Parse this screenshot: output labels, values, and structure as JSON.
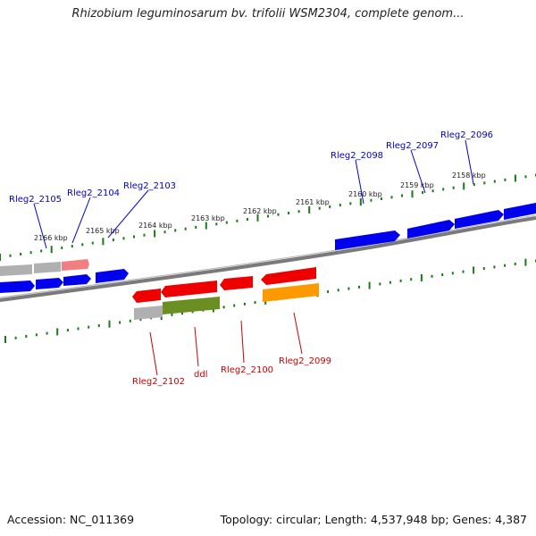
{
  "title": "Rhizobium leguminosarum bv. trifolii WSM2304, complete genom...",
  "footer": {
    "accession": "Accession: NC_011369",
    "summary": "Topology: circular; Length: 4,537,948 bp; Genes: 4,387"
  },
  "colors": {
    "forward_label": "#0000cc",
    "reverse_label": "#cc0000",
    "tick": "#1a7a1a",
    "backbone": "#808080",
    "gene_blue": "#0000ee",
    "gene_red": "#ee0000",
    "gene_grey": "#b0b0b0",
    "gene_pink": "#f08080",
    "gene_green": "#6b8e23",
    "gene_orange": "#ff9900"
  },
  "kbp_ticks": [
    "2166 kbp",
    "2165 kbp",
    "2164 kbp",
    "2163 kbp",
    "2162 kbp",
    "2161 kbp",
    "2160 kbp",
    "2159 kbp",
    "2158 kbp"
  ],
  "forward_gene_labels": [
    "Rleg2_2105",
    "Rleg2_2104",
    "Rleg2_2103",
    "Rleg2_2098",
    "Rleg2_2097",
    "Rleg2_2096"
  ],
  "reverse_gene_labels": [
    "Rleg2_2102",
    "ddl",
    "Rleg2_2100",
    "Rleg2_2099"
  ]
}
